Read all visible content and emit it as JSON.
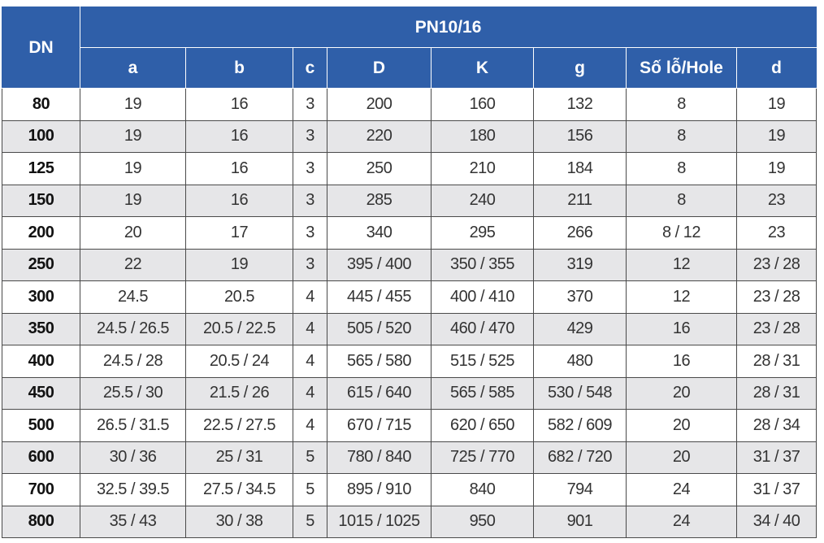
{
  "table": {
    "corner": "DN",
    "group": "PN10/16",
    "columns": [
      "a",
      "b",
      "c",
      "D",
      "K",
      "g",
      "Số lỗ/Hole",
      "d"
    ],
    "rows": [
      [
        "80",
        "19",
        "16",
        "3",
        "200",
        "160",
        "132",
        "8",
        "19"
      ],
      [
        "100",
        "19",
        "16",
        "3",
        "220",
        "180",
        "156",
        "8",
        "19"
      ],
      [
        "125",
        "19",
        "16",
        "3",
        "250",
        "210",
        "184",
        "8",
        "19"
      ],
      [
        "150",
        "19",
        "16",
        "3",
        "285",
        "240",
        "211",
        "8",
        "23"
      ],
      [
        "200",
        "20",
        "17",
        "3",
        "340",
        "295",
        "266",
        "8 / 12",
        "23"
      ],
      [
        "250",
        "22",
        "19",
        "3",
        "395 / 400",
        "350 / 355",
        "319",
        "12",
        "23 / 28"
      ],
      [
        "300",
        "24.5",
        "20.5",
        "4",
        "445 / 455",
        "400 / 410",
        "370",
        "12",
        "23 / 28"
      ],
      [
        "350",
        "24.5 / 26.5",
        "20.5 / 22.5",
        "4",
        "505 / 520",
        "460 / 470",
        "429",
        "16",
        "23 / 28"
      ],
      [
        "400",
        "24.5 / 28",
        "20.5 / 24",
        "4",
        "565 / 580",
        "515 / 525",
        "480",
        "16",
        "28 / 31"
      ],
      [
        "450",
        "25.5 / 30",
        "21.5 / 26",
        "4",
        "615 / 640",
        "565 / 585",
        "530 / 548",
        "20",
        "28 / 31"
      ],
      [
        "500",
        "26.5 / 31.5",
        "22.5 / 27.5",
        "4",
        "670 / 715",
        "620 / 650",
        "582 / 609",
        "20",
        "28 / 34"
      ],
      [
        "600",
        "30 / 36",
        "25 / 31",
        "5",
        "780 / 840",
        "725 / 770",
        "682 / 720",
        "20",
        "31 / 37"
      ],
      [
        "700",
        "32.5 / 39.5",
        "27.5 / 34.5",
        "5",
        "895 / 910",
        "840",
        "794",
        "24",
        "31 / 37"
      ],
      [
        "800",
        "35 / 43",
        "30 / 38",
        "5",
        "1015 / 1025",
        "950",
        "901",
        "24",
        "34 / 40"
      ]
    ]
  }
}
